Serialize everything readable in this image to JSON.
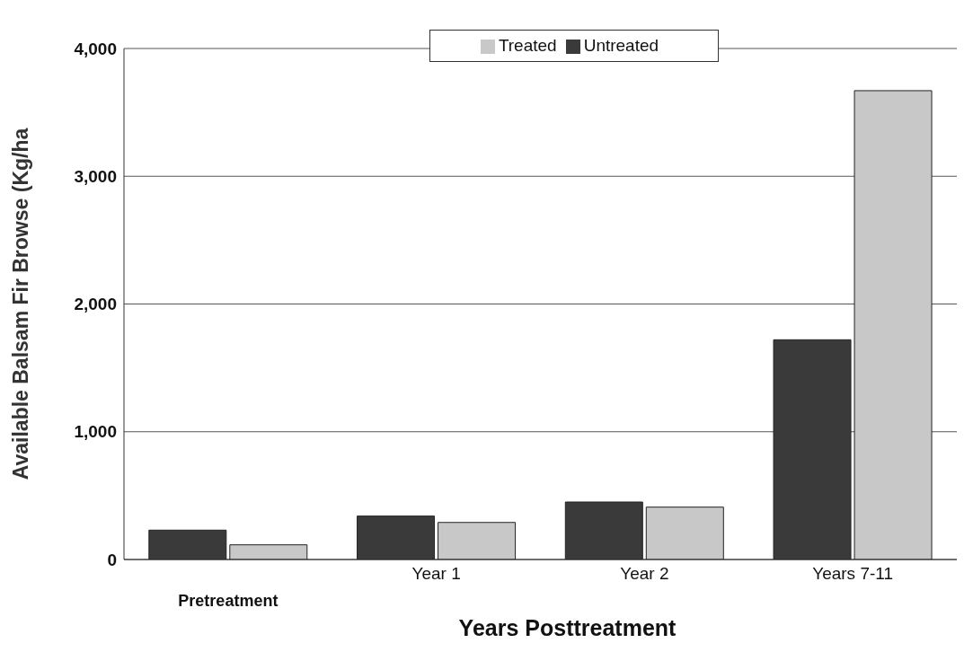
{
  "chart_data": {
    "type": "bar",
    "xlabel": "Years Posttreatment",
    "ylabel": "Available Balsam Fir Browse (Kg/ha",
    "categories": [
      "Pretreatment",
      "Year 1",
      "Year 2",
      "Years 7-11"
    ],
    "series": [
      {
        "name": "Untreated",
        "color": "#3a3a3a",
        "values": [
          230,
          340,
          450,
          1720
        ]
      },
      {
        "name": "Treated",
        "color": "#c8c8c8",
        "values": [
          115,
          290,
          410,
          3670
        ]
      }
    ],
    "ylim": [
      0,
      4000
    ],
    "yticks": [
      0,
      {
        "value": 1000,
        "label": "1,000"
      },
      {
        "value": 2000,
        "label": "2,000"
      },
      {
        "value": 3000,
        "label": "3,000"
      },
      {
        "value": 4000,
        "label": "4,000"
      }
    ],
    "grid": "y",
    "legend": "top"
  }
}
